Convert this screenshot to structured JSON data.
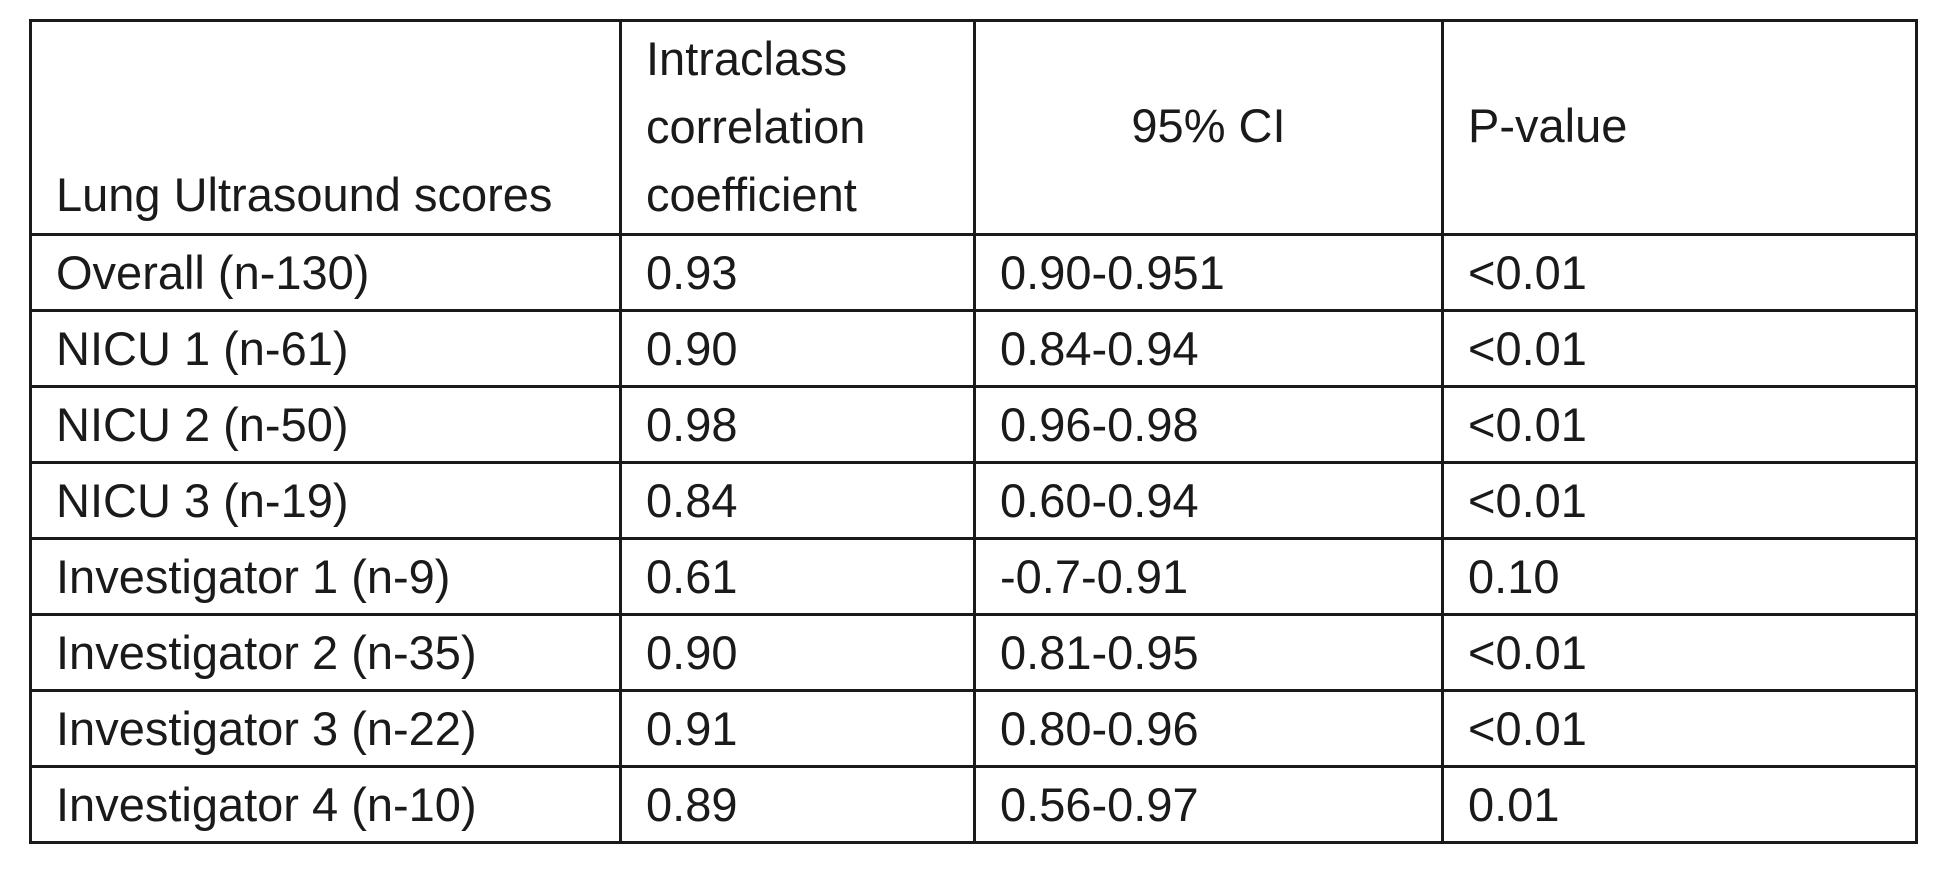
{
  "table": {
    "headers": [
      "Lung Ultrasound scores",
      "Intraclass correlation coefficient",
      "95% CI",
      "P-value"
    ],
    "rows": [
      [
        "Overall (n-130)",
        "0.93",
        "0.90-0.951",
        "<0.01"
      ],
      [
        "NICU 1 (n-61)",
        "0.90",
        "0.84-0.94",
        "<0.01"
      ],
      [
        "NICU 2 (n-50)",
        "0.98",
        "0.96-0.98",
        "<0.01"
      ],
      [
        "NICU 3 (n-19)",
        "0.84",
        "0.60-0.94",
        "<0.01"
      ],
      [
        "Investigator 1 (n-9)",
        "0.61",
        "-0.7-0.91",
        "0.10"
      ],
      [
        "Investigator 2 (n-35)",
        "0.90",
        "0.81-0.95",
        "<0.01"
      ],
      [
        "Investigator 3 (n-22)",
        "0.91",
        "0.80-0.96",
        "<0.01"
      ],
      [
        "Investigator 4 (n-10)",
        "0.89",
        "0.56-0.97",
        "0.01"
      ]
    ]
  }
}
